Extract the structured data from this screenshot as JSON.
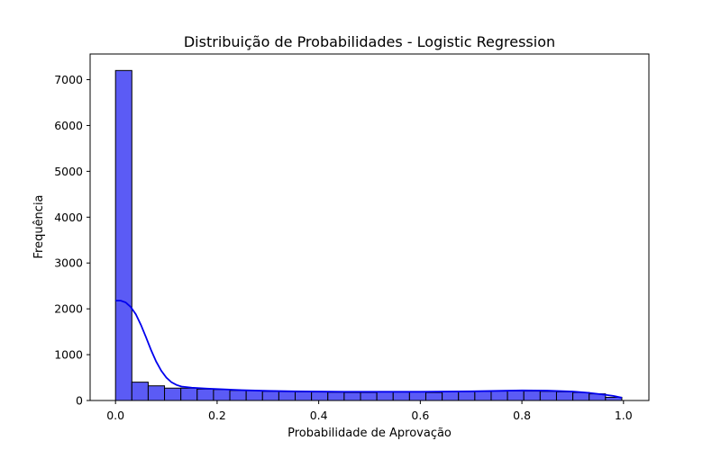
{
  "chart_data": {
    "type": "bar",
    "title": "Distribuição de Probabilidades - Logistic Regression",
    "xlabel": "Probabilidade de Aprovação",
    "ylabel": "Frequência",
    "xlim": [
      -0.05,
      1.05
    ],
    "ylim": [
      0,
      7560
    ],
    "xticks": [
      "0.0",
      "0.2",
      "0.4",
      "0.6",
      "0.8",
      "1.0"
    ],
    "xtick_values": [
      0.0,
      0.2,
      0.4,
      0.6,
      0.8,
      1.0
    ],
    "yticks": [
      "0",
      "1000",
      "2000",
      "3000",
      "4000",
      "5000",
      "6000",
      "7000"
    ],
    "ytick_values": [
      0,
      1000,
      2000,
      3000,
      4000,
      5000,
      6000,
      7000
    ],
    "bin_range": [
      0.0,
      0.9967
    ],
    "values": [
      7200,
      400,
      320,
      270,
      270,
      250,
      240,
      220,
      215,
      200,
      195,
      190,
      185,
      180,
      175,
      175,
      195,
      185,
      195,
      175,
      195,
      195,
      200,
      205,
      210,
      205,
      200,
      190,
      175,
      145,
      70
    ],
    "kde": {
      "x": [
        0.0,
        0.01,
        0.02,
        0.03,
        0.04,
        0.05,
        0.06,
        0.07,
        0.08,
        0.09,
        0.1,
        0.11,
        0.12,
        0.13,
        0.15,
        0.18,
        0.2,
        0.25,
        0.3,
        0.35,
        0.4,
        0.45,
        0.5,
        0.55,
        0.6,
        0.65,
        0.7,
        0.75,
        0.8,
        0.85,
        0.9,
        0.93,
        0.96,
        0.98,
        0.9967
      ],
      "y": [
        2180,
        2180,
        2140,
        2040,
        1880,
        1650,
        1380,
        1100,
        850,
        650,
        500,
        400,
        340,
        305,
        280,
        260,
        250,
        225,
        210,
        200,
        195,
        190,
        190,
        190,
        190,
        195,
        200,
        210,
        220,
        215,
        195,
        170,
        130,
        100,
        60
      ]
    },
    "grid": false,
    "legend": "none"
  }
}
